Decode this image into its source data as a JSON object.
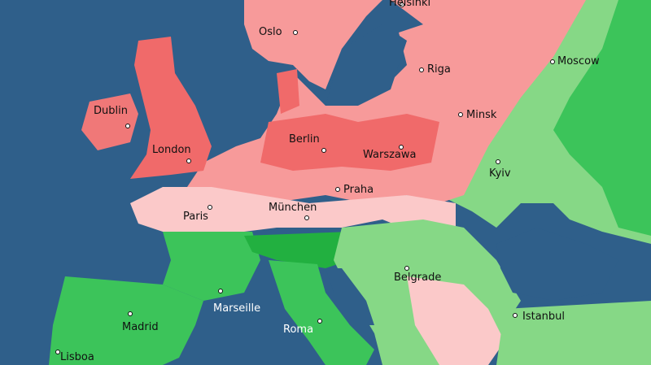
{
  "colors": {
    "sea": "#2f5f8a",
    "warm_strong": "#f06a6a",
    "warm": "#f79a9a",
    "warm_light": "#fbc9c9",
    "cool_light": "#86d886",
    "cool": "#3cc45a",
    "cool_strong": "#22b040"
  },
  "cities": [
    {
      "name": "Helsinki"
    },
    {
      "name": "Oslo"
    },
    {
      "name": "Riga"
    },
    {
      "name": "Moscow"
    },
    {
      "name": "Dublin"
    },
    {
      "name": "Minsk"
    },
    {
      "name": "Berlin"
    },
    {
      "name": "London"
    },
    {
      "name": "Warszawa"
    },
    {
      "name": "Kyiv"
    },
    {
      "name": "Praha"
    },
    {
      "name": "Paris"
    },
    {
      "name": "München"
    },
    {
      "name": "Belgrade"
    },
    {
      "name": "Marseille"
    },
    {
      "name": "Roma"
    },
    {
      "name": "Madrid"
    },
    {
      "name": "Istanbul"
    },
    {
      "name": "Lisboa"
    }
  ]
}
